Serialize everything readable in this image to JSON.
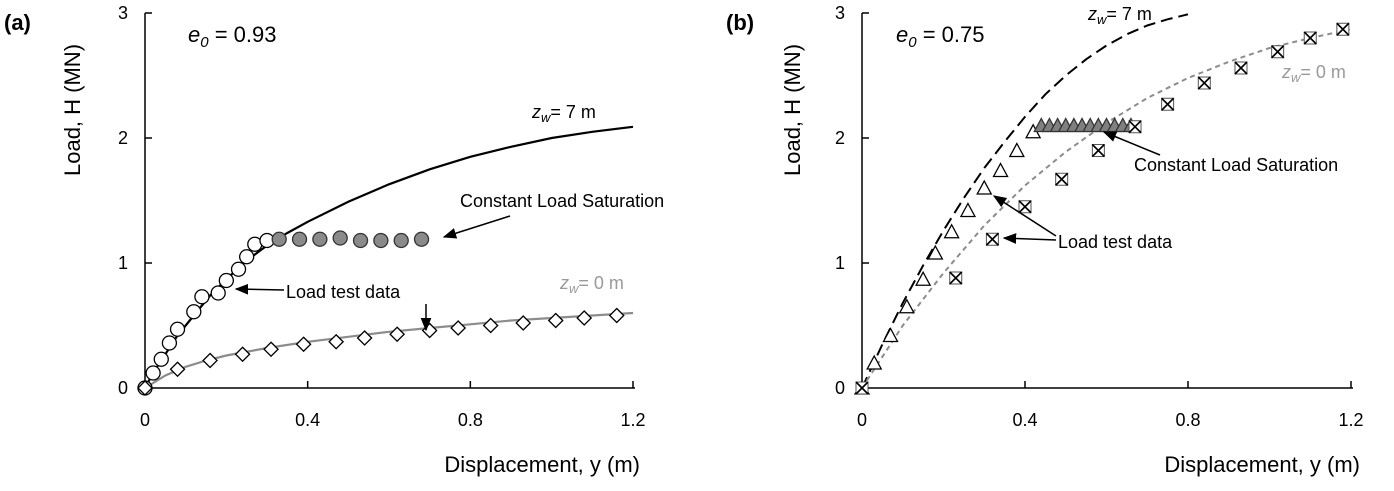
{
  "chart_data": [
    {
      "type": "scatter",
      "panel_label": "(a)",
      "xlabel": "Displacement, y (m)",
      "ylabel": "Load, H (MN)",
      "xlim": [
        0,
        1.2
      ],
      "ylim": [
        0,
        3
      ],
      "xticks": [
        "0",
        "0.4",
        "0.8",
        "1.2"
      ],
      "yticks": [
        "0",
        "1",
        "2",
        "3"
      ],
      "xtick_values": [
        0,
        0.4,
        0.8,
        1.2
      ],
      "ytick_values": [
        0,
        1,
        2,
        3
      ],
      "grid": false,
      "void_ratio_label": "= 0.93",
      "series": [
        {
          "label": "z_w = 7 m",
          "kind": "line",
          "style": "solid",
          "color": "#000000",
          "x": [
            0,
            0.02,
            0.05,
            0.08,
            0.12,
            0.16,
            0.2,
            0.25,
            0.3,
            0.35,
            0.4,
            0.5,
            0.6,
            0.7,
            0.8,
            0.9,
            1.0,
            1.1,
            1.2
          ],
          "y": [
            0,
            0.12,
            0.27,
            0.42,
            0.58,
            0.74,
            0.87,
            1.02,
            1.14,
            1.24,
            1.33,
            1.49,
            1.63,
            1.75,
            1.85,
            1.93,
            2.0,
            2.05,
            2.09
          ]
        },
        {
          "label": "Load test data (z_w = 7 m)",
          "kind": "markers",
          "marker": "circle",
          "color": "#000000",
          "fill": "#ffffff",
          "x": [
            0,
            0.02,
            0.04,
            0.06,
            0.08,
            0.12,
            0.14,
            0.18,
            0.2,
            0.23,
            0.25,
            0.27,
            0.3
          ],
          "y": [
            0,
            0.12,
            0.23,
            0.36,
            0.47,
            0.61,
            0.73,
            0.76,
            0.86,
            0.95,
            1.05,
            1.15,
            1.18
          ]
        },
        {
          "label": "Constant Load Saturation (a)",
          "kind": "markers",
          "marker": "circle",
          "color": "#333333",
          "fill": "#8a8a8a",
          "x": [
            0.33,
            0.38,
            0.43,
            0.48,
            0.53,
            0.58,
            0.63,
            0.68
          ],
          "y": [
            1.19,
            1.19,
            1.19,
            1.2,
            1.18,
            1.18,
            1.18,
            1.19
          ]
        },
        {
          "label": "z_w = 0 m",
          "kind": "line",
          "style": "solid",
          "color": "#8c8c8c",
          "x": [
            0,
            0.05,
            0.1,
            0.15,
            0.2,
            0.3,
            0.4,
            0.5,
            0.6,
            0.7,
            0.8,
            0.9,
            1.0,
            1.1,
            1.2
          ],
          "y": [
            0,
            0.1,
            0.17,
            0.22,
            0.26,
            0.32,
            0.37,
            0.41,
            0.45,
            0.48,
            0.51,
            0.54,
            0.56,
            0.58,
            0.6
          ]
        },
        {
          "label": "Load test data (z_w = 0 m)",
          "kind": "markers",
          "marker": "diamond",
          "color": "#000000",
          "fill": "#ffffff",
          "x": [
            0,
            0.08,
            0.16,
            0.24,
            0.31,
            0.39,
            0.47,
            0.54,
            0.62,
            0.7,
            0.77,
            0.85,
            0.93,
            1.01,
            1.08,
            1.16
          ],
          "y": [
            0,
            0.15,
            0.22,
            0.27,
            0.31,
            0.35,
            0.37,
            0.4,
            0.43,
            0.46,
            0.48,
            0.5,
            0.52,
            0.54,
            0.56,
            0.58
          ]
        }
      ],
      "annotations": {
        "zw7": "= 7 m",
        "zw0": "= 0 m",
        "cls": "Constant Load Saturation",
        "ltd": "Load test data"
      }
    },
    {
      "type": "scatter",
      "panel_label": "(b)",
      "xlabel": "Displacement, y (m)",
      "ylabel": "Load, H (MN)",
      "xlim": [
        0,
        1.2
      ],
      "ylim": [
        0,
        3
      ],
      "xticks": [
        "0",
        "0.4",
        "0.8",
        "1.2"
      ],
      "yticks": [
        "0",
        "1",
        "2",
        "3"
      ],
      "xtick_values": [
        0,
        0.4,
        0.8,
        1.2
      ],
      "ytick_values": [
        0,
        1,
        2,
        3
      ],
      "grid": false,
      "void_ratio_label": "= 0.75",
      "series": [
        {
          "label": "z_w = 7 m",
          "kind": "line",
          "style": "dashed",
          "color": "#000000",
          "x": [
            0,
            0.05,
            0.1,
            0.15,
            0.2,
            0.25,
            0.3,
            0.35,
            0.4,
            0.45,
            0.5,
            0.55,
            0.6,
            0.65,
            0.7,
            0.75,
            0.8
          ],
          "y": [
            0,
            0.35,
            0.68,
            0.98,
            1.26,
            1.52,
            1.76,
            1.97,
            2.17,
            2.35,
            2.5,
            2.63,
            2.74,
            2.83,
            2.9,
            2.95,
            2.99
          ]
        },
        {
          "label": "Load test data (z_w = 7 m)",
          "kind": "markers",
          "marker": "triangle",
          "color": "#000000",
          "fill": "#ffffff",
          "x": [
            0,
            0.03,
            0.07,
            0.11,
            0.15,
            0.18,
            0.22,
            0.26,
            0.3,
            0.34,
            0.38,
            0.42
          ],
          "y": [
            0,
            0.2,
            0.42,
            0.65,
            0.87,
            1.08,
            1.25,
            1.42,
            1.6,
            1.74,
            1.9,
            2.05
          ]
        },
        {
          "label": "Constant Load Saturation (b)",
          "kind": "markers",
          "marker": "triangle",
          "color": "#333333",
          "fill": "#808080",
          "x": [
            0.44,
            0.46,
            0.48,
            0.5,
            0.52,
            0.54,
            0.56,
            0.58,
            0.6,
            0.62,
            0.64,
            0.66
          ],
          "y": [
            2.1,
            2.1,
            2.1,
            2.1,
            2.1,
            2.1,
            2.1,
            2.1,
            2.1,
            2.1,
            2.1,
            2.1
          ]
        },
        {
          "label": "z_w = 0 m",
          "kind": "line",
          "style": "dashed",
          "color": "#8c8c8c",
          "x": [
            0,
            0.1,
            0.2,
            0.3,
            0.4,
            0.5,
            0.6,
            0.7,
            0.8,
            0.9,
            1.0,
            1.1,
            1.2
          ],
          "y": [
            0,
            0.5,
            0.92,
            1.3,
            1.62,
            1.89,
            2.12,
            2.32,
            2.48,
            2.61,
            2.72,
            2.8,
            2.87
          ]
        },
        {
          "label": "Load test data (z_w = 0 m)",
          "kind": "markers",
          "marker": "xbox",
          "color": "#000000",
          "fill": "#ffffff",
          "x": [
            0,
            0.23,
            0.32,
            0.4,
            0.49,
            0.58,
            0.67,
            0.75,
            0.84,
            0.93,
            1.02,
            1.1,
            1.18
          ],
          "y": [
            0,
            0.88,
            1.19,
            1.45,
            1.67,
            1.9,
            2.09,
            2.27,
            2.44,
            2.56,
            2.69,
            2.8,
            2.87
          ]
        }
      ],
      "annotations": {
        "zw7": "= 7 m",
        "zw0": "= 0 m",
        "cls": "Constant Load Saturation",
        "ltd": "Load test data"
      }
    }
  ]
}
